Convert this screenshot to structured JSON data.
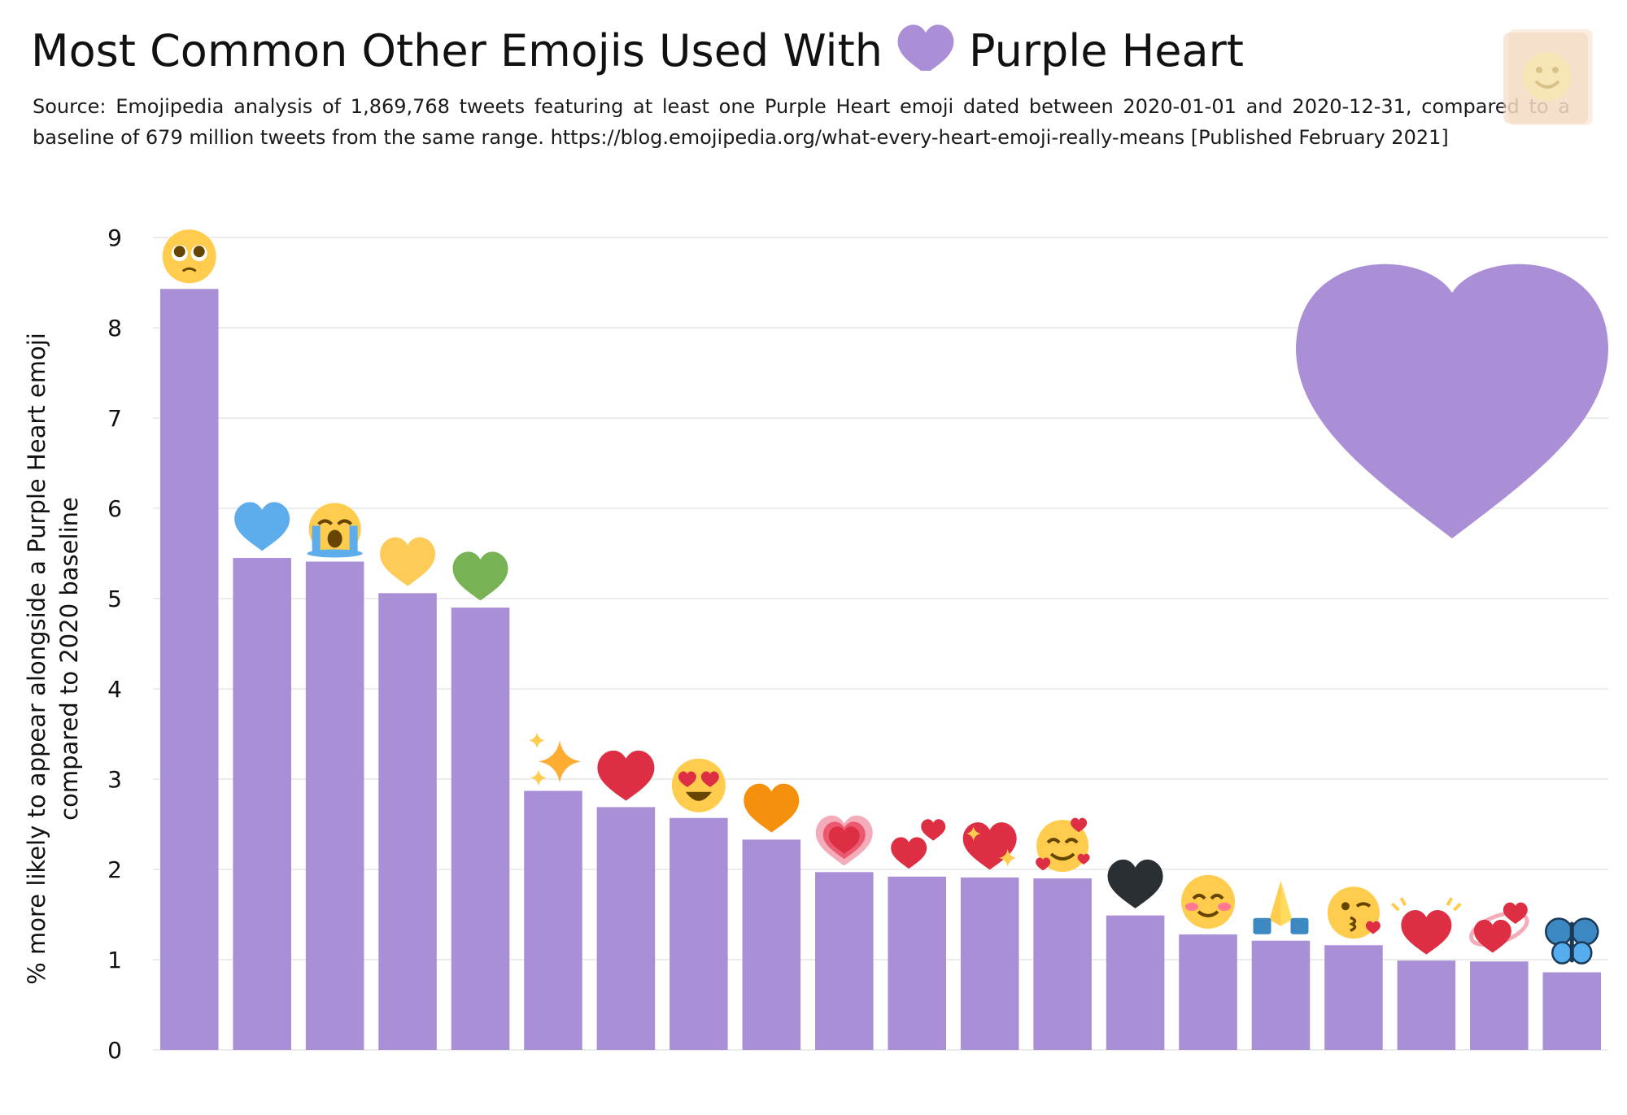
{
  "title": {
    "before": "Most Common Other Emojis Used With",
    "emoji": "purple-heart-icon",
    "after": "Purple Heart"
  },
  "subtitle": "Source: Emojipedia analysis of 1,869,768 tweets featuring at least one Purple Heart emoji dated between 2020-01-01 and 2020-12-31, compared to a baseline of 679 million tweets from the same range. https://blog.emojipedia.org/what-every-heart-emoji-really-means [Published February 2021]",
  "colors": {
    "bar": "#a98fd6",
    "purple_heart": "#aa8ed6",
    "grid": "#e6e6e6"
  },
  "chart_data": {
    "type": "bar",
    "title": "Most Common Other Emojis Used With 💜 Purple Heart",
    "ylabel": [
      "% more likely to appear alongside a Purple Heart emoji",
      "compared to 2020 baseline"
    ],
    "xlabel": "",
    "ylim": [
      0,
      9
    ],
    "yticks": [
      0,
      1,
      2,
      3,
      4,
      5,
      6,
      7,
      8,
      9
    ],
    "grid": true,
    "categories": [
      "pleading-face-icon",
      "blue-heart-icon",
      "loudly-crying-face-icon",
      "yellow-heart-icon",
      "green-heart-icon",
      "sparkles-icon",
      "red-heart-icon",
      "heart-eyes-face-icon",
      "orange-heart-icon",
      "growing-heart-icon",
      "two-hearts-icon",
      "sparkling-heart-icon",
      "smiling-face-with-hearts-icon",
      "black-heart-icon",
      "smiling-face-blush-icon",
      "folded-hands-icon",
      "kissing-face-icon",
      "beating-heart-icon",
      "revolving-hearts-icon",
      "butterfly-icon"
    ],
    "values": [
      8.43,
      5.45,
      5.41,
      5.06,
      4.9,
      2.87,
      2.69,
      2.57,
      2.33,
      1.97,
      1.92,
      1.91,
      1.9,
      1.49,
      1.28,
      1.21,
      1.16,
      0.99,
      0.98,
      0.86
    ]
  }
}
